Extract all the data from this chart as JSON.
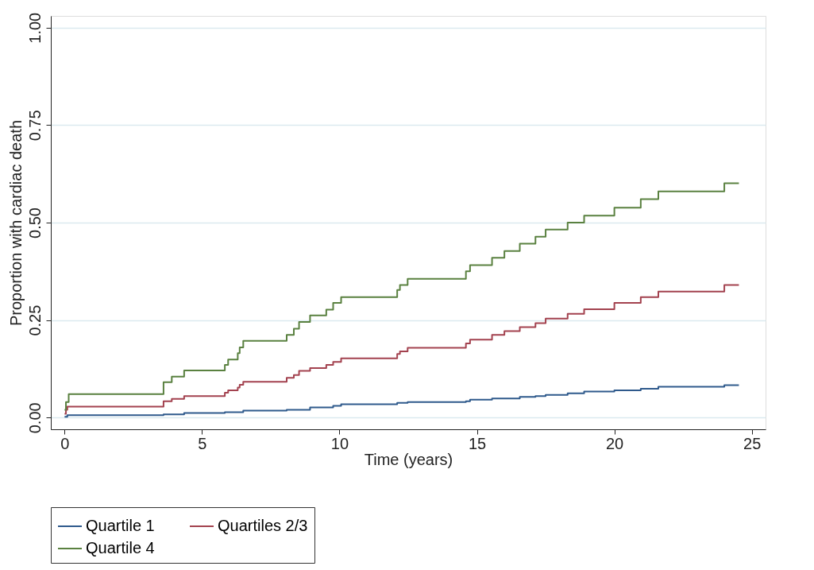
{
  "chart_data": {
    "type": "step",
    "xlabel": "Time (years)",
    "ylabel": "Proportion with cardiac death",
    "xlim": [
      -0.5,
      25.5
    ],
    "xticks": [
      0,
      5,
      10,
      15,
      20,
      25
    ],
    "ylim": [
      -0.03,
      1.03
    ],
    "yticks": [
      {
        "value": 0,
        "label": "0.00"
      },
      {
        "value": 0.25,
        "label": "0.25"
      },
      {
        "value": 0.5,
        "label": "0.50"
      },
      {
        "value": 0.75,
        "label": "0.75"
      },
      {
        "value": 1,
        "label": "1.00"
      }
    ],
    "grid": "y",
    "legend": "bottom",
    "series": [
      {
        "name": "Quartile 1",
        "color": "#2f5a8c",
        "x": [
          0,
          0.1,
          3.6,
          4.35,
          5.83,
          6.5,
          8.08,
          8.93,
          9.77,
          10.06,
          12.1,
          12.48,
          14.6,
          14.75,
          15.55,
          16.56,
          17.13,
          17.5,
          18.3,
          18.9,
          20.0,
          20.96,
          21.6,
          24.0,
          24.53
        ],
        "values": [
          0.002,
          0.006,
          0.008,
          0.012,
          0.014,
          0.018,
          0.02,
          0.026,
          0.03,
          0.034,
          0.038,
          0.04,
          0.042,
          0.046,
          0.049,
          0.053,
          0.055,
          0.058,
          0.062,
          0.067,
          0.07,
          0.074,
          0.079,
          0.083,
          0.083
        ]
      },
      {
        "name": "Quartiles 2/3",
        "color": "#a3424f",
        "x": [
          0,
          0.05,
          0.1,
          3.6,
          3.9,
          4.35,
          5.83,
          5.95,
          6.3,
          6.37,
          6.5,
          8.08,
          8.34,
          8.53,
          8.93,
          9.52,
          9.77,
          10.06,
          12.1,
          12.2,
          12.48,
          14.6,
          14.75,
          15.55,
          16.0,
          16.56,
          17.13,
          17.5,
          18.3,
          18.9,
          20.0,
          20.96,
          21.6,
          24.0,
          24.53
        ],
        "values": [
          0.01,
          0.02,
          0.028,
          0.042,
          0.048,
          0.055,
          0.064,
          0.07,
          0.077,
          0.084,
          0.092,
          0.102,
          0.109,
          0.12,
          0.127,
          0.135,
          0.143,
          0.152,
          0.163,
          0.17,
          0.179,
          0.19,
          0.2,
          0.212,
          0.222,
          0.232,
          0.242,
          0.254,
          0.266,
          0.278,
          0.294,
          0.309,
          0.323,
          0.34,
          0.34
        ]
      },
      {
        "name": "Quartile 4",
        "color": "#5a8140",
        "x": [
          0,
          0.05,
          0.15,
          3.6,
          3.9,
          4.35,
          5.83,
          5.95,
          6.3,
          6.37,
          6.5,
          8.08,
          8.34,
          8.53,
          8.93,
          9.52,
          9.77,
          10.06,
          12.1,
          12.2,
          12.48,
          14.6,
          14.75,
          15.55,
          16.0,
          16.56,
          17.13,
          17.5,
          18.3,
          18.9,
          20.0,
          20.96,
          21.6,
          24.0,
          24.53
        ],
        "values": [
          0.02,
          0.04,
          0.06,
          0.091,
          0.105,
          0.121,
          0.135,
          0.149,
          0.165,
          0.18,
          0.197,
          0.212,
          0.228,
          0.245,
          0.262,
          0.277,
          0.294,
          0.309,
          0.327,
          0.34,
          0.356,
          0.375,
          0.391,
          0.41,
          0.427,
          0.446,
          0.464,
          0.482,
          0.5,
          0.518,
          0.538,
          0.56,
          0.58,
          0.601,
          0.601
        ]
      }
    ]
  }
}
